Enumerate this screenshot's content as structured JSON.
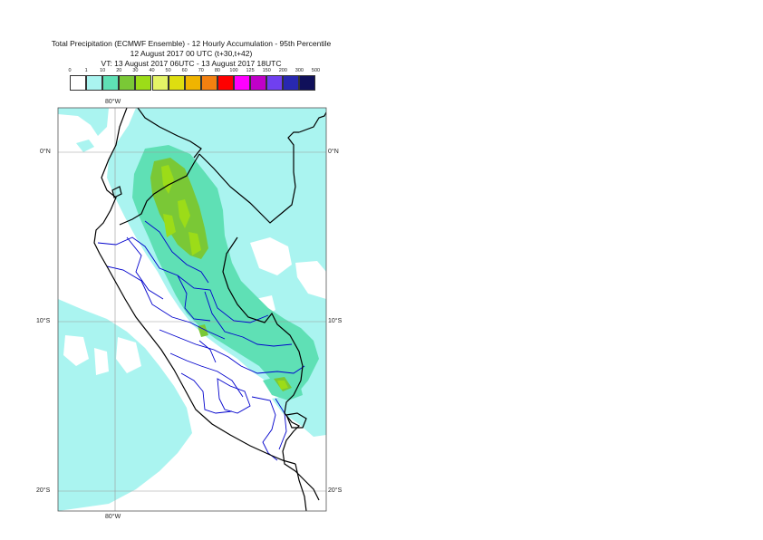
{
  "title": {
    "line1": "Total Precipitation (ECMWF Ensemble) - 12 Hourly Accumulation - 95th Percentile",
    "line2": "12 August 2017 00 UTC (t+30,t+42)",
    "line3": "VT: 13 August 2017 06UTC - 13 August 2017 18UTC"
  },
  "legend": {
    "labels": [
      "0",
      "1",
      "10",
      "20",
      "30",
      "40",
      "50",
      "60",
      "70",
      "80",
      "100",
      "125",
      "150",
      "200",
      "300",
      "500"
    ],
    "colors": [
      "#ffffff",
      "#aaf4f0",
      "#5fe0b5",
      "#7ac836",
      "#9cdc18",
      "#e4f466",
      "#dede10",
      "#f0b400",
      "#f38010",
      "#ff0000",
      "#ff00ff",
      "#c000c8",
      "#7040f0",
      "#2828b0",
      "#10105a"
    ]
  },
  "axes": {
    "top_lon": "80°W",
    "bottom_lon": "80°W",
    "lat_left": [
      "0°N",
      "10°S",
      "20°S"
    ],
    "lat_right": [
      "0°N",
      "10°S",
      "20°S"
    ]
  },
  "colors": {
    "light": "#aaf4f0",
    "medium": "#5fe0b5",
    "green": "#7ac836",
    "yellow": "#9cdc18",
    "coast": "#000000",
    "regions": "#0000cc",
    "grid": "#999999"
  }
}
